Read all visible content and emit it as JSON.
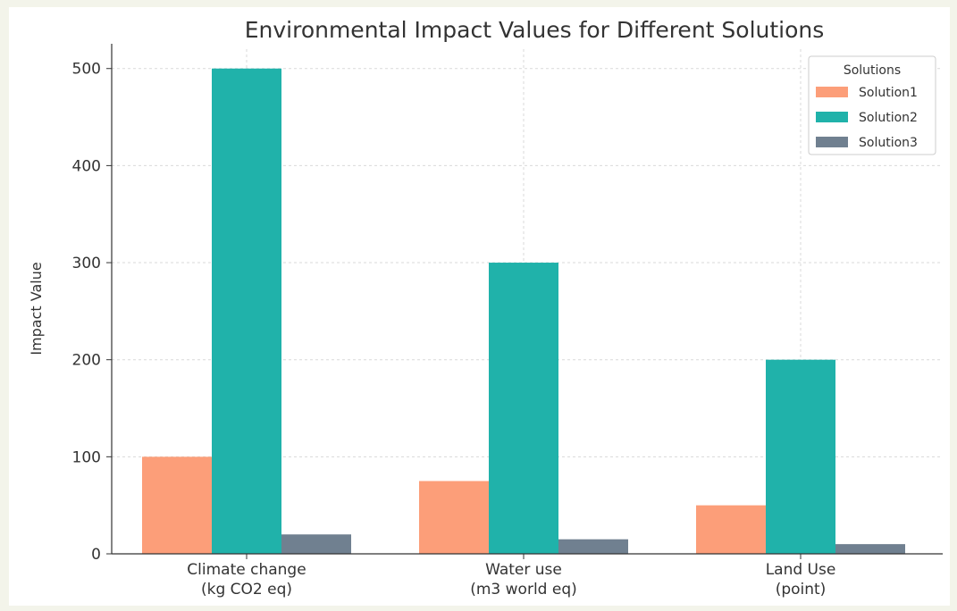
{
  "chart_data": {
    "type": "bar",
    "title": "Environmental Impact Values for Different Solutions",
    "xlabel": "",
    "ylabel": "Impact Value",
    "categories": [
      [
        "Climate change",
        "(kg CO2 eq)"
      ],
      [
        "Water use",
        "(m3 world eq)"
      ],
      [
        "Land Use",
        "(point)"
      ]
    ],
    "series": [
      {
        "name": "Solution1",
        "values": [
          100,
          75,
          50
        ],
        "color": "#fc9e79"
      },
      {
        "name": "Solution2",
        "values": [
          500,
          300,
          200
        ],
        "color": "#20b2aa"
      },
      {
        "name": "Solution3",
        "values": [
          20,
          15,
          10
        ],
        "color": "#708090"
      }
    ],
    "ylim": [
      0,
      520
    ],
    "yticks": [
      0,
      100,
      200,
      300,
      400,
      500
    ],
    "grid": true,
    "legend": {
      "title": "Solutions",
      "placement": "top-right"
    }
  }
}
